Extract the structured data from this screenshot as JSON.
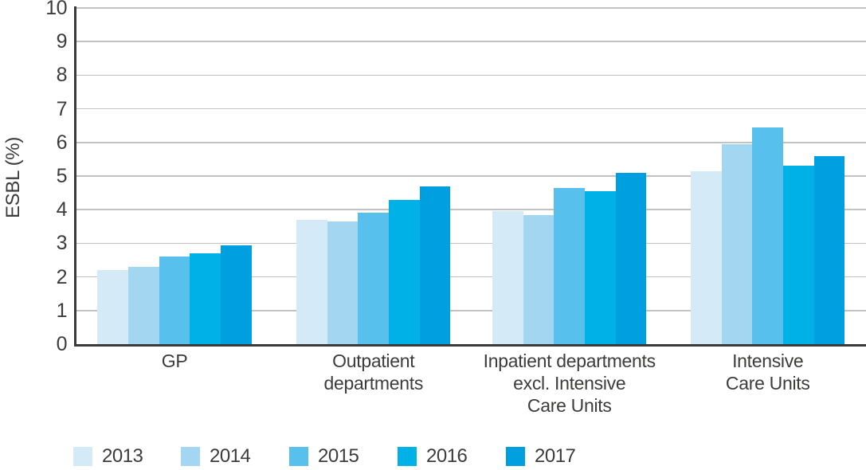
{
  "chart_data": {
    "type": "bar",
    "title": "",
    "ylabel": "ESBL (%)",
    "xlabel": "",
    "ylim": [
      0,
      10
    ],
    "yticks": [
      0,
      1,
      2,
      3,
      4,
      5,
      6,
      7,
      8,
      9,
      10
    ],
    "grid": true,
    "legend_position": "bottom",
    "categories": [
      "GP",
      "Outpatient departments",
      "Inpatient departments excl. Intensive Care Units",
      "Intensive Care Units"
    ],
    "category_label_lines": [
      [
        "GP"
      ],
      [
        "Outpatient",
        "departments"
      ],
      [
        "Inpatient departments",
        "excl. Intensive",
        "Care Units"
      ],
      [
        "Intensive",
        "Care Units"
      ]
    ],
    "series": [
      {
        "name": "2013",
        "color": "#d5eaf7",
        "values": [
          2.2,
          3.7,
          3.95,
          5.15
        ]
      },
      {
        "name": "2014",
        "color": "#a3d6f0",
        "values": [
          2.3,
          3.65,
          3.85,
          5.95
        ]
      },
      {
        "name": "2015",
        "color": "#57c0ec",
        "values": [
          2.6,
          3.9,
          4.65,
          6.45
        ]
      },
      {
        "name": "2016",
        "color": "#00b1e8",
        "values": [
          2.7,
          4.3,
          4.55,
          5.3
        ]
      },
      {
        "name": "2017",
        "color": "#009fe0",
        "values": [
          2.95,
          4.7,
          5.1,
          5.6
        ]
      }
    ],
    "colors": {
      "axis": "#3a3a39",
      "grid": "#c2c2c2",
      "text": "#3c3c3b"
    }
  }
}
